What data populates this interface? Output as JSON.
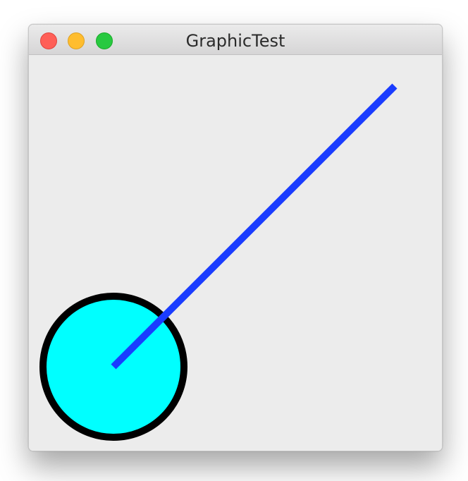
{
  "window": {
    "title": "GraphicTest"
  },
  "title_bar": {
    "buttons": [
      {
        "name": "close",
        "color": "#ff5f57",
        "border": "#e0443e"
      },
      {
        "name": "minimize",
        "color": "#ffbd2e",
        "border": "#dea123"
      },
      {
        "name": "zoom",
        "color": "#28c940",
        "border": "#1aab29"
      }
    ]
  },
  "canvas": {
    "background": "#ececec",
    "circle": {
      "fill": "#00ffff",
      "stroke": "#000000"
    },
    "line": {
      "stroke": "#1a3cff"
    }
  }
}
